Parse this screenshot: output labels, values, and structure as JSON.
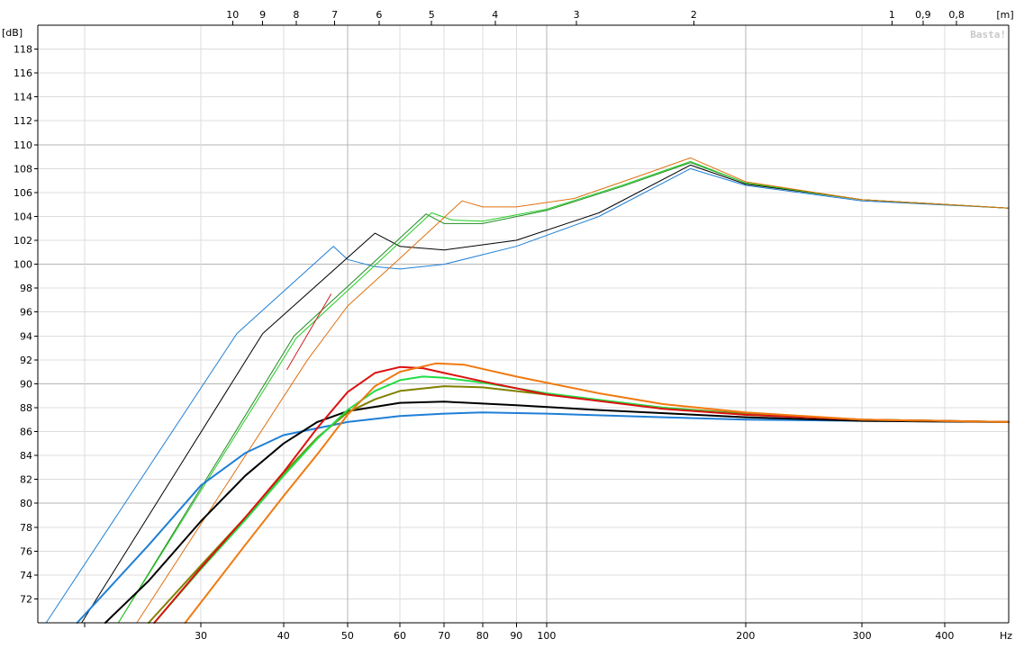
{
  "chart_data": {
    "type": "line",
    "watermark": "Basta!",
    "y_unit_label": "[dB]",
    "x_unit_label": "Hz",
    "top_unit_label": "[m]",
    "x_scale": "log",
    "xlim": [
      17,
      500
    ],
    "ylim": [
      70,
      120
    ],
    "grid": true,
    "y_ticks": [
      "72",
      "74",
      "76",
      "78",
      "80",
      "82",
      "84",
      "86",
      "88",
      "90",
      "92",
      "94",
      "96",
      "98",
      "100",
      "102",
      "104",
      "106",
      "108",
      "110",
      "112",
      "114",
      "116",
      "118"
    ],
    "y_tick_values": [
      72,
      74,
      76,
      78,
      80,
      82,
      84,
      86,
      88,
      90,
      92,
      94,
      96,
      98,
      100,
      102,
      104,
      106,
      108,
      110,
      112,
      114,
      116,
      118
    ],
    "x_ticks": [
      "30",
      "40",
      "50",
      "60",
      "70",
      "80",
      "90",
      "100",
      "200",
      "300",
      "400"
    ],
    "x_tick_values": [
      30,
      40,
      50,
      60,
      70,
      80,
      90,
      100,
      200,
      300,
      400
    ],
    "top_ticks": [
      "10",
      "9",
      "8",
      "7",
      "6",
      "5",
      "4",
      "3",
      "2",
      "1",
      "0,9",
      "0,8"
    ],
    "top_tick_freqs": [
      33.5,
      37.2,
      41.8,
      47.8,
      55.8,
      67,
      83.6,
      111,
      167,
      333,
      371,
      417
    ],
    "series": [
      {
        "color": "#1f7fd6",
        "width": 1,
        "points": [
          [
            17.5,
            70
          ],
          [
            34,
            94.2
          ],
          [
            47.6,
            101.5
          ],
          [
            50,
            100.4
          ],
          [
            55,
            99.8
          ],
          [
            60,
            99.6
          ],
          [
            70,
            100
          ],
          [
            90,
            101.5
          ],
          [
            120,
            104
          ],
          [
            165,
            108
          ],
          [
            200,
            106.6
          ],
          [
            300,
            105.3
          ],
          [
            500,
            104.7
          ]
        ]
      },
      {
        "color": "#000000",
        "width": 1,
        "points": [
          [
            19.8,
            70
          ],
          [
            37.2,
            94.2
          ],
          [
            55,
            102.6
          ],
          [
            60,
            101.5
          ],
          [
            70,
            101.2
          ],
          [
            90,
            102
          ],
          [
            120,
            104.3
          ],
          [
            165,
            108.3
          ],
          [
            200,
            106.7
          ],
          [
            300,
            105.4
          ],
          [
            500,
            104.7
          ]
        ]
      },
      {
        "color": "#228B22",
        "width": 1,
        "points": [
          [
            22.5,
            70
          ],
          [
            41.5,
            94
          ],
          [
            65.7,
            104.2
          ],
          [
            70,
            103.4
          ],
          [
            80,
            103.4
          ],
          [
            100,
            104.5
          ],
          [
            130,
            106.5
          ],
          [
            165,
            108.5
          ],
          [
            200,
            106.8
          ],
          [
            300,
            105.4
          ],
          [
            500,
            104.7
          ]
        ]
      },
      {
        "color": "#22cc22",
        "width": 1,
        "points": [
          [
            22.5,
            70
          ],
          [
            41.8,
            93.8
          ],
          [
            67,
            104.3
          ],
          [
            72,
            103.7
          ],
          [
            80,
            103.6
          ],
          [
            100,
            104.6
          ],
          [
            130,
            106.6
          ],
          [
            165,
            108.6
          ],
          [
            200,
            106.8
          ],
          [
            300,
            105.4
          ],
          [
            500,
            104.7
          ]
        ]
      },
      {
        "color": "#cc2020",
        "width": 1,
        "points": [
          [
            40.5,
            91.2
          ],
          [
            47.2,
            97.5
          ]
        ]
      },
      {
        "color": "#e07010",
        "width": 1,
        "points": [
          [
            24,
            70
          ],
          [
            43.5,
            92
          ],
          [
            50,
            96.5
          ],
          [
            60,
            100.5
          ],
          [
            74.5,
            105.3
          ],
          [
            80,
            104.8
          ],
          [
            90,
            104.8
          ],
          [
            110,
            105.5
          ],
          [
            140,
            107.5
          ],
          [
            165,
            108.9
          ],
          [
            200,
            106.9
          ],
          [
            300,
            105.4
          ],
          [
            500,
            104.7
          ]
        ]
      },
      {
        "color": "#1f7fd6",
        "width": 2,
        "points": [
          [
            19.5,
            70
          ],
          [
            25,
            76.5
          ],
          [
            30,
            81.5
          ],
          [
            35,
            84.2
          ],
          [
            40,
            85.7
          ],
          [
            50,
            86.8
          ],
          [
            60,
            87.3
          ],
          [
            70,
            87.5
          ],
          [
            80,
            87.6
          ],
          [
            100,
            87.5
          ],
          [
            150,
            87.2
          ],
          [
            200,
            87.0
          ],
          [
            300,
            86.9
          ],
          [
            500,
            86.8
          ]
        ]
      },
      {
        "color": "#000000",
        "width": 2,
        "points": [
          [
            21.5,
            70
          ],
          [
            25,
            73.5
          ],
          [
            30,
            78.5
          ],
          [
            35,
            82.3
          ],
          [
            40,
            85
          ],
          [
            45,
            86.8
          ],
          [
            50,
            87.7
          ],
          [
            60,
            88.4
          ],
          [
            70,
            88.5
          ],
          [
            90,
            88.2
          ],
          [
            120,
            87.8
          ],
          [
            200,
            87.2
          ],
          [
            300,
            86.9
          ],
          [
            500,
            86.8
          ]
        ]
      },
      {
        "color": "#808000",
        "width": 2,
        "points": [
          [
            25,
            70
          ],
          [
            30,
            74.8
          ],
          [
            35,
            78.8
          ],
          [
            40,
            82.5
          ],
          [
            45,
            85.5
          ],
          [
            50,
            87.6
          ],
          [
            55,
            88.7
          ],
          [
            60,
            89.4
          ],
          [
            70,
            89.8
          ],
          [
            80,
            89.7
          ],
          [
            100,
            89.1
          ],
          [
            150,
            88.0
          ],
          [
            200,
            87.5
          ],
          [
            300,
            87.0
          ],
          [
            500,
            86.8
          ]
        ]
      },
      {
        "color": "#22dd44",
        "width": 2,
        "points": [
          [
            25.5,
            70
          ],
          [
            30,
            74.5
          ],
          [
            35,
            78.6
          ],
          [
            40,
            82.3
          ],
          [
            45,
            85.4
          ],
          [
            50,
            87.8
          ],
          [
            55,
            89.4
          ],
          [
            60,
            90.3
          ],
          [
            65,
            90.6
          ],
          [
            70,
            90.5
          ],
          [
            80,
            90.1
          ],
          [
            100,
            89.2
          ],
          [
            150,
            88.0
          ],
          [
            200,
            87.4
          ],
          [
            300,
            87.0
          ],
          [
            500,
            86.8
          ]
        ]
      },
      {
        "color": "#dd1111",
        "width": 2,
        "points": [
          [
            25.5,
            70
          ],
          [
            30,
            74.6
          ],
          [
            35,
            78.8
          ],
          [
            40,
            82.6
          ],
          [
            45,
            86.3
          ],
          [
            50,
            89.3
          ],
          [
            55,
            90.9
          ],
          [
            60,
            91.4
          ],
          [
            65,
            91.3
          ],
          [
            70,
            90.9
          ],
          [
            80,
            90.2
          ],
          [
            100,
            89.1
          ],
          [
            150,
            87.9
          ],
          [
            200,
            87.4
          ],
          [
            300,
            87.0
          ],
          [
            500,
            86.8
          ]
        ]
      },
      {
        "color": "#f07a10",
        "width": 2,
        "points": [
          [
            28.4,
            70
          ],
          [
            35,
            76.5
          ],
          [
            40,
            80.6
          ],
          [
            45,
            84.1
          ],
          [
            50,
            87.4
          ],
          [
            55,
            89.8
          ],
          [
            60,
            91.0
          ],
          [
            68,
            91.7
          ],
          [
            75,
            91.6
          ],
          [
            90,
            90.6
          ],
          [
            120,
            89.2
          ],
          [
            150,
            88.3
          ],
          [
            200,
            87.6
          ],
          [
            300,
            87.0
          ],
          [
            500,
            86.8
          ]
        ]
      }
    ]
  }
}
